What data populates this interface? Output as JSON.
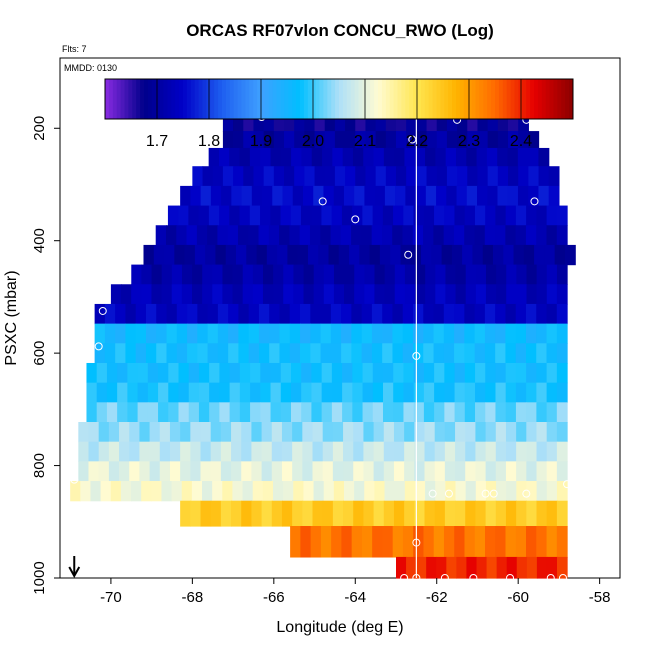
{
  "chart_data": {
    "type": "heatmap",
    "title": "ORCAS RF07vlon CONCU_RWO (Log)",
    "flts_label": "Flts: 7",
    "mmdd_label": "MMDD: 0130",
    "xlabel": "Longitude (deg E)",
    "ylabel": "PSXC (mbar)",
    "xlim": [
      -71.25,
      -57.5
    ],
    "ylim": [
      1000,
      75
    ],
    "x_ticks": [
      -70,
      -68,
      -66,
      -64,
      -62,
      -60,
      -58
    ],
    "y_ticks": [
      200,
      400,
      600,
      800,
      1000
    ],
    "colorbar": {
      "range": [
        1.6,
        2.5
      ],
      "ticks": [
        1.7,
        1.8,
        1.9,
        2.0,
        2.1,
        2.2,
        2.3,
        2.4
      ],
      "colors": [
        "#8a2be2",
        "#00008b",
        "#0000c8",
        "#1e5ff0",
        "#3fa0ff",
        "#00bfff",
        "#aee0f8",
        "#fffbd2",
        "#ffe650",
        "#ffb400",
        "#ff6a00",
        "#e60000",
        "#8b0000"
      ]
    },
    "vertical_line_x": -62.5,
    "arrow_x": -70.9,
    "rows": [
      {
        "pressure": 190,
        "lon_min": -67.25,
        "lon_max": -59.75,
        "value": 1.68
      },
      {
        "pressure": 220,
        "lon_min": -67.25,
        "lon_max": -59.5,
        "value": 1.7
      },
      {
        "pressure": 250,
        "lon_min": -67.6,
        "lon_max": -59.25,
        "value": 1.72
      },
      {
        "pressure": 285,
        "lon_min": -68.0,
        "lon_max": -59.0,
        "value": 1.74
      },
      {
        "pressure": 320,
        "lon_min": -68.3,
        "lon_max": -59.0,
        "value": 1.75
      },
      {
        "pressure": 355,
        "lon_min": -68.6,
        "lon_max": -58.8,
        "value": 1.74
      },
      {
        "pressure": 390,
        "lon_min": -68.9,
        "lon_max": -58.8,
        "value": 1.72
      },
      {
        "pressure": 425,
        "lon_min": -69.2,
        "lon_max": -58.6,
        "value": 1.7
      },
      {
        "pressure": 460,
        "lon_min": -69.5,
        "lon_max": -58.8,
        "value": 1.71
      },
      {
        "pressure": 495,
        "lon_min": -70.0,
        "lon_max": -58.8,
        "value": 1.73
      },
      {
        "pressure": 530,
        "lon_min": -70.4,
        "lon_max": -58.8,
        "value": 1.74
      },
      {
        "pressure": 565,
        "lon_min": -70.4,
        "lon_max": -58.8,
        "value": 1.96
      },
      {
        "pressure": 600,
        "lon_min": -70.4,
        "lon_max": -58.8,
        "value": 1.97
      },
      {
        "pressure": 635,
        "lon_min": -70.6,
        "lon_max": -58.8,
        "value": 1.97
      },
      {
        "pressure": 670,
        "lon_min": -70.6,
        "lon_max": -58.8,
        "value": 1.98
      },
      {
        "pressure": 705,
        "lon_min": -70.6,
        "lon_max": -58.8,
        "value": 2.02
      },
      {
        "pressure": 740,
        "lon_min": -70.8,
        "lon_max": -58.8,
        "value": 2.04
      },
      {
        "pressure": 775,
        "lon_min": -70.8,
        "lon_max": -58.8,
        "value": 2.07
      },
      {
        "pressure": 810,
        "lon_min": -70.8,
        "lon_max": -58.8,
        "value": 2.1
      },
      {
        "pressure": 845,
        "lon_min": -71.0,
        "lon_max": -58.8,
        "value": 2.12
      },
      {
        "pressure": 880,
        "lon_min": -68.3,
        "lon_max": -58.8,
        "value": 2.24
      },
      {
        "pressure": 935,
        "lon_min": -65.6,
        "lon_max": -58.8,
        "value": 2.34
      },
      {
        "pressure": 990,
        "lon_min": -63.0,
        "lon_max": -58.8,
        "value": 2.4
      }
    ],
    "points": [
      {
        "lon": -66.3,
        "p": 180
      },
      {
        "lon": -62.6,
        "p": 220
      },
      {
        "lon": -61.5,
        "p": 185
      },
      {
        "lon": -59.8,
        "p": 185
      },
      {
        "lon": -64.8,
        "p": 330
      },
      {
        "lon": -59.6,
        "p": 330
      },
      {
        "lon": -64.0,
        "p": 362
      },
      {
        "lon": -62.7,
        "p": 425
      },
      {
        "lon": -58.5,
        "p": 455
      },
      {
        "lon": -70.2,
        "p": 525
      },
      {
        "lon": -70.3,
        "p": 588
      },
      {
        "lon": -62.5,
        "p": 605
      },
      {
        "lon": -70.9,
        "p": 825
      },
      {
        "lon": -62.1,
        "p": 850
      },
      {
        "lon": -61.7,
        "p": 850
      },
      {
        "lon": -60.8,
        "p": 850
      },
      {
        "lon": -60.6,
        "p": 850
      },
      {
        "lon": -59.8,
        "p": 850
      },
      {
        "lon": -58.8,
        "p": 833
      },
      {
        "lon": -62.5,
        "p": 937
      },
      {
        "lon": -62.8,
        "p": 1000
      },
      {
        "lon": -62.5,
        "p": 1000
      },
      {
        "lon": -61.8,
        "p": 1000
      },
      {
        "lon": -61.1,
        "p": 1000
      },
      {
        "lon": -60.2,
        "p": 1000
      },
      {
        "lon": -59.2,
        "p": 1000
      },
      {
        "lon": -58.9,
        "p": 1000
      }
    ]
  }
}
